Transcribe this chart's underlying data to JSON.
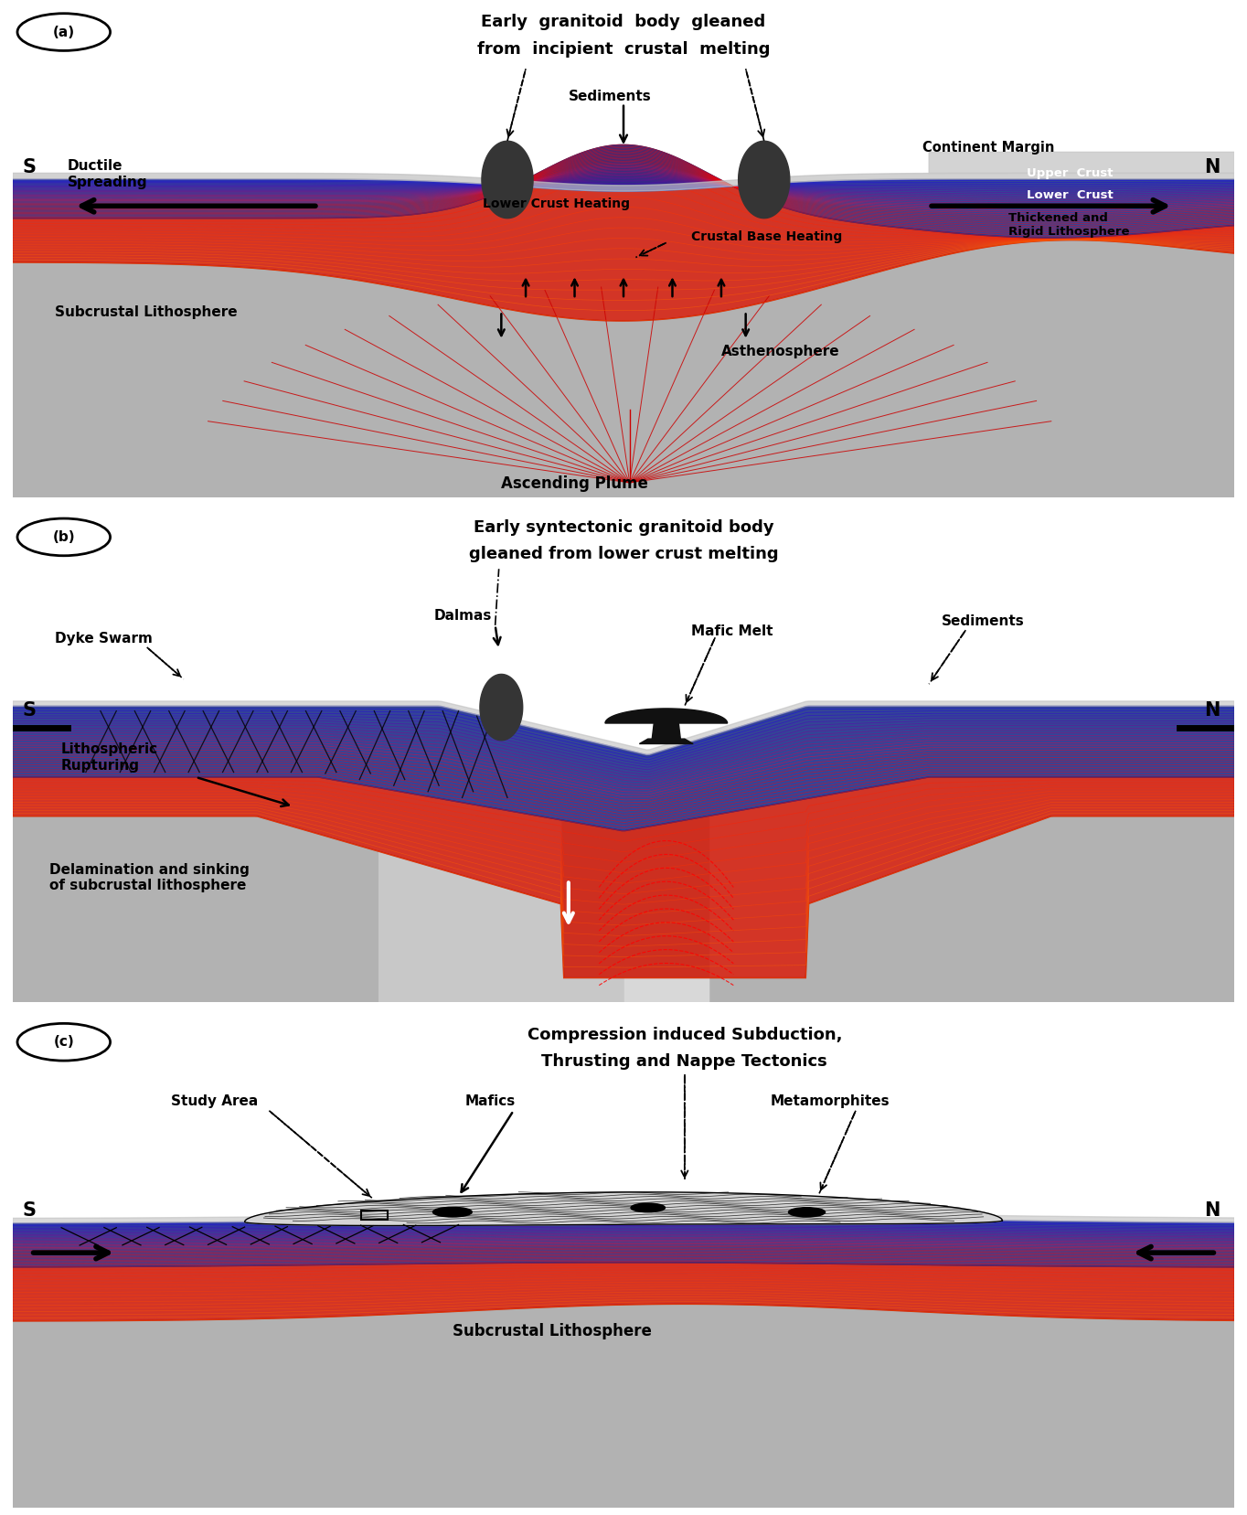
{
  "fig_width": 13.64,
  "fig_height": 16.57,
  "panel_a": {
    "label": "(a)",
    "title1": "Early  granitoid  body  gleaned",
    "title2": "from  incipient  crustal  melting",
    "S": "S",
    "N": "N",
    "continent_margin": "Continent Margin",
    "ductile_spreading": "Ductile\nSpreading",
    "subcrustal_litho": "Subcrustal Lithosphere",
    "lower_crust_heating": "Lower Crust Heating",
    "crustal_base_heating": "Crustal Base Heating",
    "asthenosphere": "Asthenosphere",
    "ascending_plume": "Ascending Plume",
    "sediments": "Sediments",
    "upper_crust": "Upper  Crust",
    "lower_crust": "Lower  Crust",
    "thickened": "Thickened and\nRigid Lithosphere"
  },
  "panel_b": {
    "label": "(b)",
    "title1": "Early syntectonic granitoid body",
    "title2": "gleaned from lower crust melting",
    "S": "S",
    "N": "N",
    "dyke_swarm": "Dyke Swarm",
    "dalmas": "Dalmas",
    "mafic_melt": "Mafic Melt",
    "sediments": "Sediments",
    "lithospheric_rupturing": "Lithospheric\nRupturing",
    "delamination": "Delamination and sinking\nof subcrustal lithosphere"
  },
  "panel_c": {
    "label": "(c)",
    "title1": "Compression induced Subduction,",
    "title2": "Thrusting and Nappe Tectonics",
    "S": "S",
    "N": "N",
    "study_area": "Study Area",
    "mafics": "Mafics",
    "metamorphites": "Metamorphites",
    "subcrustal_litho": "Subcrustal Lithosphere"
  }
}
